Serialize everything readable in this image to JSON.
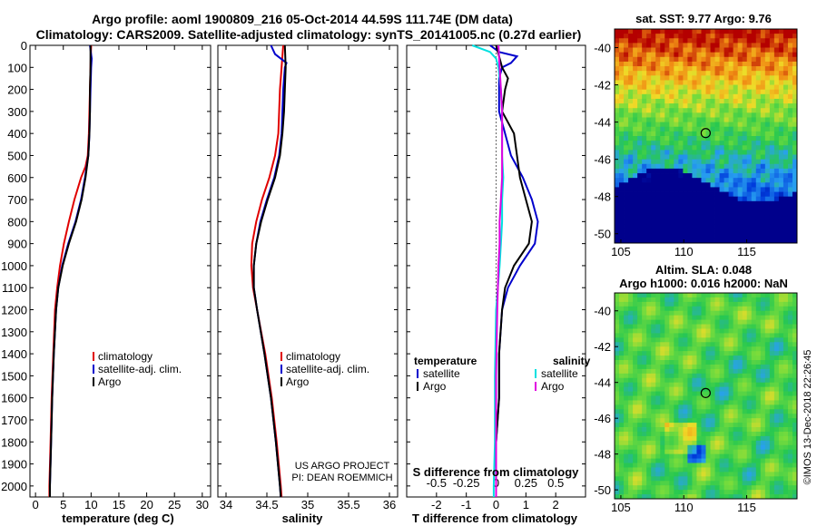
{
  "header": {
    "title_line1": "Argo profile: aoml 1900809_216 05-Oct-2014 44.59S 111.74E (DM data)",
    "title_line2": "Climatology: CARS2009. Satellite-adjusted climatology: synTS_20141005.nc (0.27d earlier)"
  },
  "credit": {
    "line1": "US ARGO PROJECT",
    "line2": "PI: DEAN ROEMMICH"
  },
  "colors": {
    "climatology": "#e00000",
    "satellite": "#0000cc",
    "argo": "#000000",
    "s_sat": "#00e0e0",
    "s_argo": "#e000e0"
  },
  "chart_data": [
    {
      "type": "line",
      "xlabel": "temperature (deg C)",
      "ylabel": "",
      "xlim": [
        -1,
        31.5
      ],
      "ylim": [
        2050,
        0
      ],
      "x_ticks": [
        "0",
        "5",
        "10",
        "15",
        "20",
        "25",
        "30"
      ],
      "y_ticks": [
        "0",
        "100",
        "200",
        "300",
        "400",
        "500",
        "600",
        "700",
        "800",
        "900",
        "1000",
        "1100",
        "1200",
        "1300",
        "1400",
        "1500",
        "1600",
        "1700",
        "1800",
        "1900",
        "2000"
      ],
      "legend": [
        "climatology",
        "satellite-adj. clim.",
        "Argo"
      ],
      "series": [
        {
          "name": "climatology",
          "color": "#e00000",
          "depth": [
            0,
            100,
            200,
            300,
            400,
            500,
            550,
            600,
            700,
            800,
            900,
            1000,
            1100,
            1200,
            1400,
            1600,
            1800,
            2000,
            2050
          ],
          "values": [
            10.0,
            9.9,
            9.8,
            9.7,
            9.6,
            9.4,
            9.0,
            8.2,
            7.0,
            6.0,
            5.1,
            4.4,
            3.9,
            3.5,
            3.2,
            2.9,
            2.7,
            2.5,
            2.5
          ]
        },
        {
          "name": "satellite-adj. clim.",
          "color": "#0000cc",
          "depth": [
            0,
            60,
            100,
            200,
            300,
            400,
            500,
            600,
            700,
            800,
            900,
            1000,
            1100,
            1200,
            1400,
            1600,
            1800,
            2000,
            2050
          ],
          "values": [
            9.8,
            10.1,
            10.0,
            9.9,
            9.8,
            9.7,
            9.5,
            8.9,
            8.2,
            7.2,
            5.9,
            4.8,
            4.1,
            3.7,
            3.3,
            3.0,
            2.8,
            2.6,
            2.6
          ]
        },
        {
          "name": "Argo",
          "color": "#000000",
          "depth": [
            0,
            100,
            200,
            300,
            400,
            500,
            600,
            700,
            800,
            900,
            1000,
            1100,
            1200,
            1400,
            1600,
            1800,
            2000,
            2050
          ],
          "values": [
            9.9,
            9.9,
            9.8,
            9.8,
            9.7,
            9.5,
            9.0,
            8.3,
            7.3,
            6.0,
            4.9,
            4.1,
            3.7,
            3.3,
            3.0,
            2.8,
            2.6,
            2.6
          ]
        }
      ]
    },
    {
      "type": "line",
      "xlabel": "salinity",
      "ylabel": "",
      "xlim": [
        33.9,
        36.1
      ],
      "ylim": [
        2050,
        0
      ],
      "x_ticks": [
        "34",
        "34.5",
        "35",
        "35.5",
        "36"
      ],
      "legend": [
        "climatology",
        "satellite-adj. clim.",
        "Argo"
      ],
      "series": [
        {
          "name": "climatology",
          "color": "#e00000",
          "depth": [
            0,
            100,
            200,
            300,
            400,
            500,
            600,
            700,
            800,
            900,
            1000,
            1100,
            1200,
            1400,
            1600,
            1800,
            2000,
            2050
          ],
          "values": [
            34.7,
            34.68,
            34.66,
            34.65,
            34.64,
            34.6,
            34.53,
            34.44,
            34.37,
            34.32,
            34.31,
            34.33,
            34.38,
            34.48,
            34.56,
            34.62,
            34.67,
            34.68
          ]
        },
        {
          "name": "satellite-adj. clim.",
          "color": "#0000cc",
          "depth": [
            0,
            40,
            80,
            100,
            200,
            300,
            400,
            500,
            600,
            700,
            800,
            900,
            1000,
            1100,
            1200,
            1400,
            1600,
            1800,
            2000,
            2050
          ],
          "values": [
            34.55,
            34.6,
            34.74,
            34.72,
            34.7,
            34.69,
            34.68,
            34.65,
            34.59,
            34.5,
            34.42,
            34.37,
            34.34,
            34.34,
            34.38,
            34.47,
            34.55,
            34.61,
            34.66,
            34.67
          ]
        },
        {
          "name": "Argo",
          "color": "#000000",
          "depth": [
            0,
            100,
            200,
            300,
            400,
            500,
            600,
            700,
            800,
            900,
            1000,
            1100,
            1200,
            1400,
            1600,
            1800,
            2000,
            2050
          ],
          "values": [
            34.72,
            34.73,
            34.72,
            34.71,
            34.69,
            34.66,
            34.6,
            34.51,
            34.43,
            34.37,
            34.34,
            34.34,
            34.38,
            34.47,
            34.55,
            34.61,
            34.66,
            34.67
          ]
        }
      ]
    },
    {
      "type": "line",
      "xlabel": "T difference from climatology",
      "xlabel_top": "S difference from climatology",
      "xlim": [
        -3,
        3
      ],
      "x2lim": [
        -0.75,
        0.75
      ],
      "ylim": [
        2050,
        0
      ],
      "x_ticks": [
        "-2",
        "-1",
        "0",
        "1",
        "2"
      ],
      "x2_ticks": [
        "-0.5",
        "-0.25",
        "0",
        "0.25",
        "0.5"
      ],
      "legend_left_title": "temperature",
      "legend_right_title": "salinity",
      "legend_left": [
        "satellite",
        "Argo"
      ],
      "legend_right": [
        "satellite",
        "Argo"
      ],
      "series": [
        {
          "name": "T satellite",
          "color": "#0000cc",
          "axis": "T",
          "depth": [
            0,
            30,
            50,
            80,
            100,
            150,
            200,
            300,
            400,
            500,
            600,
            700,
            800,
            900,
            1000,
            1100,
            1200,
            1400,
            1600,
            1800,
            2000,
            2050
          ],
          "values": [
            -0.2,
            0.1,
            0.7,
            0.5,
            0.2,
            0.1,
            0.1,
            0.1,
            0.3,
            0.5,
            0.9,
            1.2,
            1.4,
            1.3,
            0.8,
            0.4,
            0.2,
            0.1,
            0.1,
            0.0,
            0.0,
            0.0
          ]
        },
        {
          "name": "T Argo",
          "color": "#000000",
          "axis": "T",
          "depth": [
            0,
            100,
            150,
            200,
            300,
            400,
            500,
            600,
            700,
            800,
            900,
            1000,
            1100,
            1200,
            1400,
            1600,
            1800,
            2000,
            2050
          ],
          "values": [
            0.0,
            0.2,
            0.4,
            0.3,
            0.2,
            0.6,
            0.7,
            0.8,
            1.0,
            1.2,
            1.1,
            0.6,
            0.3,
            0.2,
            0.1,
            0.1,
            0.0,
            0.0,
            0.0
          ]
        },
        {
          "name": "S satellite",
          "color": "#00e0e0",
          "axis": "S",
          "depth": [
            0,
            30,
            60,
            100,
            200,
            300,
            400,
            500,
            600,
            700,
            800,
            900,
            1000,
            1200,
            1500,
            1800,
            2000,
            2050
          ],
          "values": [
            -0.2,
            -0.05,
            0.0,
            0.02,
            0.04,
            0.05,
            0.05,
            0.05,
            0.06,
            0.05,
            0.05,
            0.04,
            0.03,
            0.0,
            -0.01,
            -0.01,
            -0.02,
            -0.02
          ]
        },
        {
          "name": "S Argo",
          "color": "#e000e0",
          "axis": "S",
          "depth": [
            0,
            100,
            200,
            300,
            400,
            500,
            600,
            700,
            800,
            900,
            1000,
            1200,
            1500,
            1800,
            2000,
            2050
          ],
          "values": [
            0.02,
            0.03,
            0.04,
            0.05,
            0.05,
            0.05,
            0.05,
            0.04,
            0.03,
            0.03,
            0.02,
            0.01,
            0.0,
            0.0,
            0.0,
            0.0
          ]
        }
      ]
    },
    {
      "type": "heatmap",
      "title_line1": "sat. SST: 9.77 Argo: 9.76",
      "x_ticks": [
        "105",
        "110",
        "115"
      ],
      "y_ticks": [
        "-40",
        "-42",
        "-44",
        "-46",
        "-48",
        "-50"
      ],
      "xlim": [
        104.5,
        119
      ],
      "ylim": [
        -50.5,
        -39
      ],
      "marker": {
        "lon": 111.74,
        "lat": -44.59
      }
    },
    {
      "type": "heatmap",
      "title_line1": "Altim. SLA: 0.048",
      "title_line2": "Argo h1000: 0.016 h2000: NaN",
      "x_ticks": [
        "105",
        "110",
        "115"
      ],
      "y_ticks": [
        "-40",
        "-42",
        "-44",
        "-46",
        "-48",
        "-50"
      ],
      "xlim": [
        104.5,
        119
      ],
      "ylim": [
        -50.5,
        -39
      ],
      "marker": {
        "lon": 111.74,
        "lat": -44.59
      }
    }
  ],
  "footer": {
    "vertical_stamp": "©IMOS 13-Dec-2018 22:26:45"
  }
}
